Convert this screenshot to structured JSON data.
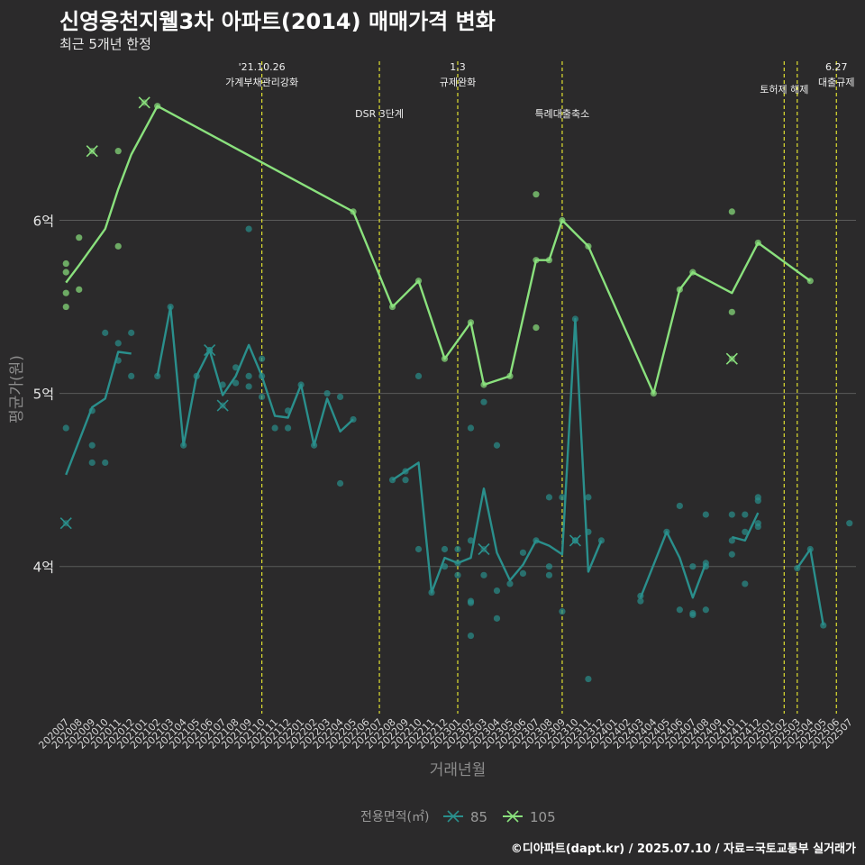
{
  "chart_data": {
    "type": "line",
    "title": "신영웅천지웰3차 아파트(2014) 매매가격 변화",
    "subtitle": "최근 5개년 한정",
    "caption": "©디아파트(dapt.kr) / 2025.07.10 / 자료=국토교통부 실거래가",
    "xlabel": "거래년월",
    "ylabel": "평균가(원)",
    "ylim": [
      3.15,
      6.95
    ],
    "y_ticks": [
      {
        "value": 4,
        "label": "4억"
      },
      {
        "value": 5,
        "label": "5억"
      },
      {
        "value": 6,
        "label": "6억"
      }
    ],
    "grid": true,
    "legend": {
      "title": "전용면적(㎡)",
      "position": "bottom"
    },
    "categories": [
      "202007",
      "202008",
      "202009",
      "202010",
      "202011",
      "202012",
      "202101",
      "202102",
      "202103",
      "202104",
      "202105",
      "202106",
      "202107",
      "202108",
      "202109",
      "202110",
      "202111",
      "202112",
      "202201",
      "202202",
      "202203",
      "202204",
      "202205",
      "202206",
      "202207",
      "202208",
      "202209",
      "202210",
      "202211",
      "202212",
      "202301",
      "202302",
      "202303",
      "202304",
      "202305",
      "202306",
      "202307",
      "202308",
      "202309",
      "202310",
      "202311",
      "202312",
      "202401",
      "202402",
      "202403",
      "202404",
      "202405",
      "202406",
      "202407",
      "202408",
      "202409",
      "202410",
      "202411",
      "202412",
      "202501",
      "202502",
      "202503",
      "202504",
      "202505",
      "202506",
      "202507"
    ],
    "events": [
      {
        "x": "202110",
        "label": "'21.10.26\n가계부채관리강화",
        "row": 0
      },
      {
        "x": "202207",
        "label": "DSR 3단계",
        "row": 1
      },
      {
        "x": "202301",
        "label": "1.3\n규제완화",
        "row": 0
      },
      {
        "x": "202309",
        "label": "특례대출축소",
        "row": 1
      },
      {
        "x": "202502",
        "label": "토허제 해제",
        "row": 0
      },
      {
        "x": "202503",
        "label": "",
        "row": 0
      },
      {
        "x": "202506",
        "label": "6.27\n대출규제",
        "row": 0
      }
    ],
    "series": [
      {
        "name": "85",
        "color": "#2a8f8c",
        "line": [
          [
            "202007",
            4.53
          ],
          [
            "202009",
            4.92
          ],
          [
            "202010",
            4.97
          ],
          [
            "202011",
            5.24
          ],
          [
            "202012",
            5.23
          ],
          null,
          [
            "202102",
            5.1
          ],
          [
            "202103",
            5.5
          ],
          [
            "202104",
            4.7
          ],
          [
            "202105",
            5.1
          ],
          [
            "202106",
            5.25
          ],
          [
            "202107",
            4.99
          ],
          [
            "202108",
            5.1
          ],
          [
            "202109",
            5.28
          ],
          [
            "202110",
            5.1
          ],
          [
            "202111",
            4.87
          ],
          [
            "202112",
            4.86
          ],
          [
            "202201",
            5.05
          ],
          [
            "202202",
            4.7
          ],
          [
            "202203",
            4.97
          ],
          [
            "202204",
            4.78
          ],
          [
            "202205",
            4.85
          ],
          null,
          [
            "202208",
            4.5
          ],
          [
            "202209",
            4.55
          ],
          [
            "202210",
            4.6
          ],
          [
            "202211",
            3.85
          ],
          [
            "202212",
            4.05
          ],
          [
            "202301",
            4.02
          ],
          [
            "202302",
            4.05
          ],
          [
            "202303",
            4.45
          ],
          [
            "202304",
            4.08
          ],
          [
            "202305",
            3.92
          ],
          [
            "202306",
            4.01
          ],
          [
            "202307",
            4.15
          ],
          [
            "202308",
            4.12
          ],
          [
            "202309",
            4.07
          ],
          [
            "202310",
            5.43
          ],
          [
            "202311",
            3.97
          ],
          [
            "202312",
            4.15
          ],
          null,
          [
            "202403",
            3.82
          ],
          [
            "202405",
            4.2
          ],
          [
            "202406",
            4.05
          ],
          [
            "202407",
            3.82
          ],
          [
            "202408",
            4.02
          ],
          null,
          [
            "202410",
            4.17
          ],
          [
            "202411",
            4.15
          ],
          [
            "202412",
            4.31
          ],
          null,
          [
            "202503",
            3.99
          ],
          [
            "202504",
            4.1
          ],
          [
            "202505",
            3.66
          ]
        ],
        "points": [
          [
            "202007",
            4.8
          ],
          [
            "202009",
            4.9
          ],
          [
            "202009",
            4.7
          ],
          [
            "202009",
            4.6
          ],
          [
            "202010",
            4.6
          ],
          [
            "202010",
            5.35
          ],
          [
            "202011",
            5.19
          ],
          [
            "202011",
            5.29
          ],
          [
            "202012",
            5.1
          ],
          [
            "202012",
            5.35
          ],
          [
            "202102",
            5.1
          ],
          [
            "202103",
            5.5
          ],
          [
            "202104",
            4.7
          ],
          [
            "202105",
            5.1
          ],
          [
            "202106",
            5.25
          ],
          [
            "202107",
            5.05
          ],
          [
            "202108",
            5.15
          ],
          [
            "202108",
            5.06
          ],
          [
            "202109",
            5.04
          ],
          [
            "202109",
            5.1
          ],
          [
            "202109",
            5.95
          ],
          [
            "202110",
            5.2
          ],
          [
            "202110",
            5.1
          ],
          [
            "202110",
            4.98
          ],
          [
            "202111",
            4.8
          ],
          [
            "202112",
            4.9
          ],
          [
            "202112",
            4.8
          ],
          [
            "202201",
            5.05
          ],
          [
            "202202",
            4.7
          ],
          [
            "202203",
            5.0
          ],
          [
            "202204",
            4.98
          ],
          [
            "202204",
            4.48
          ],
          [
            "202205",
            4.85
          ],
          [
            "202208",
            4.5
          ],
          [
            "202209",
            4.55
          ],
          [
            "202209",
            4.5
          ],
          [
            "202210",
            5.1
          ],
          [
            "202210",
            4.1
          ],
          [
            "202211",
            3.85
          ],
          [
            "202212",
            4.1
          ],
          [
            "202212",
            4.0
          ],
          [
            "202301",
            4.1
          ],
          [
            "202301",
            4.02
          ],
          [
            "202301",
            3.95
          ],
          [
            "202302",
            3.8
          ],
          [
            "202302",
            3.79
          ],
          [
            "202302",
            3.6
          ],
          [
            "202302",
            4.8
          ],
          [
            "202302",
            4.15
          ],
          [
            "202303",
            4.95
          ],
          [
            "202303",
            3.95
          ],
          [
            "202304",
            3.86
          ],
          [
            "202304",
            3.7
          ],
          [
            "202304",
            4.7
          ],
          [
            "202305",
            3.9
          ],
          [
            "202306",
            3.96
          ],
          [
            "202306",
            4.08
          ],
          [
            "202307",
            4.15
          ],
          [
            "202308",
            4.4
          ],
          [
            "202308",
            4.0
          ],
          [
            "202308",
            3.95
          ],
          [
            "202309",
            4.4
          ],
          [
            "202309",
            3.74
          ],
          [
            "202310",
            5.43
          ],
          [
            "202310",
            4.15
          ],
          [
            "202311",
            4.4
          ],
          [
            "202311",
            4.2
          ],
          [
            "202311",
            3.35
          ],
          [
            "202312",
            4.15
          ],
          [
            "202403",
            3.8
          ],
          [
            "202403",
            3.83
          ],
          [
            "202405",
            4.2
          ],
          [
            "202406",
            4.35
          ],
          [
            "202406",
            3.75
          ],
          [
            "202407",
            4.0
          ],
          [
            "202407",
            3.73
          ],
          [
            "202407",
            3.72
          ],
          [
            "202408",
            4.0
          ],
          [
            "202408",
            4.02
          ],
          [
            "202408",
            3.75
          ],
          [
            "202408",
            4.3
          ],
          [
            "202410",
            4.07
          ],
          [
            "202410",
            4.3
          ],
          [
            "202410",
            4.15
          ],
          [
            "202411",
            3.9
          ],
          [
            "202411",
            4.3
          ],
          [
            "202411",
            4.2
          ],
          [
            "202412",
            4.38
          ],
          [
            "202412",
            4.4
          ],
          [
            "202412",
            4.25
          ],
          [
            "202412",
            4.23
          ],
          [
            "202503",
            3.99
          ],
          [
            "202504",
            4.1
          ],
          [
            "202505",
            3.66
          ],
          [
            "202507",
            4.25
          ]
        ],
        "cancelled": [
          [
            "202007",
            4.25
          ],
          [
            "202106",
            5.25
          ],
          [
            "202107",
            4.93
          ],
          [
            "202303",
            4.1
          ],
          [
            "202310",
            4.15
          ]
        ]
      },
      {
        "name": "105",
        "color": "#8ae17d",
        "line": [
          [
            "202007",
            5.64
          ],
          [
            "202008",
            5.74
          ],
          [
            "202010",
            5.95
          ],
          [
            "202011",
            6.18
          ],
          [
            "202012",
            6.38
          ],
          [
            "202102",
            6.66
          ],
          [
            "202205",
            6.05
          ],
          [
            "202208",
            5.5
          ],
          [
            "202210",
            5.65
          ],
          [
            "202212",
            5.2
          ],
          [
            "202302",
            5.41
          ],
          [
            "202303",
            5.05
          ],
          [
            "202305",
            5.1
          ],
          [
            "202307",
            5.77
          ],
          [
            "202308",
            5.77
          ],
          [
            "202309",
            6.0
          ],
          [
            "202311",
            5.85
          ],
          [
            "202404",
            5.0
          ],
          [
            "202406",
            5.6
          ],
          [
            "202407",
            5.7
          ],
          [
            "202410",
            5.58
          ],
          [
            "202412",
            5.87
          ],
          [
            "202504",
            5.65
          ]
        ],
        "points": [
          [
            "202007",
            5.75
          ],
          [
            "202007",
            5.7
          ],
          [
            "202007",
            5.58
          ],
          [
            "202007",
            5.5
          ],
          [
            "202008",
            5.9
          ],
          [
            "202008",
            5.6
          ],
          [
            "202011",
            6.4
          ],
          [
            "202011",
            5.85
          ],
          [
            "202102",
            6.66
          ],
          [
            "202205",
            6.05
          ],
          [
            "202208",
            5.5
          ],
          [
            "202210",
            5.65
          ],
          [
            "202212",
            5.2
          ],
          [
            "202302",
            5.41
          ],
          [
            "202303",
            5.05
          ],
          [
            "202305",
            5.1
          ],
          [
            "202307",
            6.15
          ],
          [
            "202307",
            5.38
          ],
          [
            "202307",
            5.77
          ],
          [
            "202308",
            5.77
          ],
          [
            "202309",
            6.0
          ],
          [
            "202311",
            5.85
          ],
          [
            "202404",
            5.0
          ],
          [
            "202406",
            5.6
          ],
          [
            "202407",
            5.7
          ],
          [
            "202410",
            6.05
          ],
          [
            "202410",
            5.47
          ],
          [
            "202412",
            5.87
          ],
          [
            "202504",
            5.65
          ]
        ],
        "cancelled": [
          [
            "202009",
            6.4
          ],
          [
            "202101",
            6.68
          ],
          [
            "202410",
            5.2
          ]
        ]
      }
    ]
  }
}
